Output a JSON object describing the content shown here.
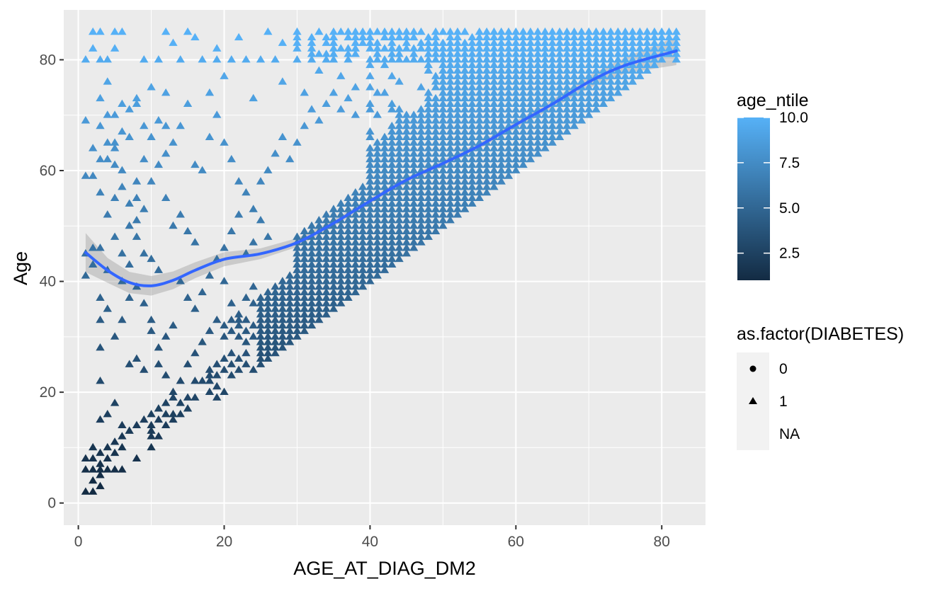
{
  "chart_data": {
    "type": "scatter",
    "title": "",
    "xlabel": "AGE_AT_DIAG_DM2",
    "ylabel": "Age",
    "xlim": [
      -2,
      86
    ],
    "ylim": [
      -4,
      89
    ],
    "x_ticks": [
      0,
      20,
      40,
      60,
      80
    ],
    "x_tick_labels": [
      "0",
      "20",
      "40",
      "60",
      "80"
    ],
    "y_ticks": [
      0,
      20,
      40,
      60,
      80
    ],
    "y_tick_labels": [
      "0",
      "20",
      "40",
      "60",
      "80"
    ],
    "grid": true,
    "background": "#EBEBEB",
    "marker": "triangle",
    "color_scale": {
      "title": "age_ntile",
      "low_color": "#132B43",
      "high_color": "#56B1F7",
      "min": 1,
      "max": 10,
      "ticks": [
        2.5,
        5.0,
        7.5,
        10.0
      ],
      "tick_labels": [
        "2.5",
        "5.0",
        "7.5",
        "10.0"
      ]
    },
    "shape_legend": {
      "title": "as.factor(DIABETES)",
      "entries": [
        {
          "label": "0",
          "shape": "circle"
        },
        {
          "label": "1",
          "shape": "triangle"
        },
        {
          "label": "NA",
          "shape": "none"
        }
      ]
    },
    "smooth": {
      "color": "#3366FF",
      "band_color": "#999999",
      "x": [
        1,
        4,
        7,
        10,
        13,
        16,
        20,
        25,
        30,
        35,
        40,
        45,
        50,
        55,
        60,
        65,
        70,
        75,
        82
      ],
      "y": [
        45.2,
        42,
        39.8,
        39.2,
        40.2,
        42,
        44,
        45,
        47,
        50.5,
        54.5,
        58.3,
        61.3,
        64.5,
        68.3,
        72,
        76,
        79,
        81.6
      ],
      "se": [
        2.2,
        1.4,
        1.2,
        1.1,
        1.0,
        0.9,
        0.8,
        0.6,
        0.5,
        0.4,
        0.35,
        0.35,
        0.35,
        0.35,
        0.4,
        0.5,
        0.7,
        0.9,
        1.6
      ]
    },
    "points": {
      "x_range": [
        1,
        82
      ],
      "y_range": [
        2,
        85
      ],
      "relation": "Age >= AGE_AT_DIAG_DM2; dense band between y = x and y = x + 25; sparse scatter above; cluster near y = 80-85",
      "scattered_points": [
        [
          1,
          59
        ],
        [
          2,
          59
        ],
        [
          1,
          69
        ],
        [
          1,
          41
        ],
        [
          2,
          43
        ],
        [
          1,
          45
        ],
        [
          2,
          46
        ],
        [
          3,
          46
        ],
        [
          3,
          33
        ],
        [
          3,
          22
        ],
        [
          2,
          10
        ],
        [
          1,
          8
        ],
        [
          2,
          8
        ],
        [
          1,
          2
        ],
        [
          2,
          2
        ],
        [
          3,
          6
        ],
        [
          4,
          6
        ],
        [
          5,
          6
        ],
        [
          4,
          8
        ],
        [
          6,
          6
        ],
        [
          3,
          15
        ],
        [
          4,
          16
        ],
        [
          5,
          18
        ],
        [
          6,
          14
        ],
        [
          3,
          37
        ],
        [
          4,
          35
        ],
        [
          3,
          62
        ],
        [
          4,
          62
        ],
        [
          5,
          64
        ],
        [
          4,
          70
        ],
        [
          6,
          72
        ],
        [
          5,
          65
        ],
        [
          7,
          66
        ],
        [
          6,
          60
        ],
        [
          8,
          58
        ],
        [
          8,
          55
        ],
        [
          9,
          53
        ],
        [
          7,
          50
        ],
        [
          8,
          48
        ],
        [
          9,
          45
        ],
        [
          10,
          44
        ],
        [
          11,
          42
        ],
        [
          7,
          25
        ],
        [
          8,
          26
        ],
        [
          9,
          24
        ],
        [
          9,
          15
        ],
        [
          10,
          13
        ],
        [
          11,
          12
        ],
        [
          12,
          14
        ],
        [
          13,
          16
        ],
        [
          14,
          18
        ],
        [
          15,
          17
        ],
        [
          16,
          19
        ],
        [
          17,
          22
        ],
        [
          18,
          23
        ],
        [
          19,
          25
        ],
        [
          12,
          30
        ],
        [
          13,
          32
        ],
        [
          12,
          55
        ],
        [
          13,
          50
        ],
        [
          14,
          52
        ],
        [
          15,
          49
        ],
        [
          16,
          47
        ],
        [
          12,
          68
        ],
        [
          13,
          65
        ],
        [
          14,
          68
        ],
        [
          15,
          72
        ],
        [
          16,
          61
        ],
        [
          17,
          60
        ],
        [
          18,
          66
        ],
        [
          19,
          70
        ],
        [
          20,
          65
        ],
        [
          21,
          62
        ],
        [
          22,
          58
        ],
        [
          23,
          56
        ],
        [
          24,
          53
        ],
        [
          25,
          51
        ],
        [
          26,
          48
        ],
        [
          20,
          40
        ],
        [
          21,
          36
        ],
        [
          22,
          33
        ],
        [
          23,
          37
        ],
        [
          24,
          39
        ],
        [
          25,
          34
        ],
        [
          26,
          37
        ],
        [
          27,
          35
        ],
        [
          12,
          85
        ],
        [
          15,
          85
        ],
        [
          3,
          80
        ],
        [
          4,
          80
        ],
        [
          5,
          82
        ],
        [
          6,
          85
        ],
        [
          9,
          80
        ],
        [
          11,
          80
        ],
        [
          14,
          80
        ],
        [
          17,
          80
        ],
        [
          19,
          80
        ],
        [
          21,
          80
        ],
        [
          23,
          80
        ],
        [
          25,
          80
        ],
        [
          27,
          80
        ],
        [
          30,
          80
        ],
        [
          30,
          85
        ],
        [
          1,
          80
        ],
        [
          2,
          82
        ],
        [
          8,
          72
        ],
        [
          10,
          75
        ],
        [
          12,
          74
        ],
        [
          18,
          74
        ],
        [
          20,
          77
        ],
        [
          24,
          73
        ],
        [
          28,
          76
        ],
        [
          31,
          74
        ],
        [
          33,
          78
        ],
        [
          35,
          82
        ],
        [
          37,
          80
        ],
        [
          39,
          85
        ],
        [
          42,
          80
        ],
        [
          44,
          84
        ],
        [
          46,
          80
        ],
        [
          48,
          82
        ],
        [
          50,
          85
        ],
        [
          52,
          80
        ],
        [
          55,
          85
        ],
        [
          58,
          82
        ],
        [
          60,
          85
        ],
        [
          2,
          85
        ],
        [
          3,
          85
        ],
        [
          5,
          85
        ],
        [
          6,
          85
        ],
        [
          13,
          83
        ],
        [
          16,
          84
        ],
        [
          19,
          82
        ],
        [
          22,
          84
        ],
        [
          26,
          85
        ],
        [
          28,
          83
        ],
        [
          32,
          84
        ],
        [
          34,
          80
        ],
        [
          36,
          77
        ],
        [
          38,
          75
        ],
        [
          3,
          28
        ],
        [
          5,
          30
        ],
        [
          6,
          33
        ],
        [
          4,
          42
        ],
        [
          6,
          40
        ],
        [
          7,
          37
        ],
        [
          8,
          39
        ],
        [
          9,
          36
        ],
        [
          10,
          33
        ],
        [
          10,
          31
        ],
        [
          11,
          28
        ],
        [
          11,
          25
        ],
        [
          12,
          23
        ],
        [
          13,
          20
        ],
        [
          14,
          22
        ],
        [
          15,
          25
        ],
        [
          16,
          27
        ],
        [
          17,
          29
        ],
        [
          18,
          31
        ],
        [
          19,
          33
        ],
        [
          10,
          58
        ],
        [
          11,
          61
        ],
        [
          12,
          63
        ],
        [
          9,
          62
        ],
        [
          10,
          66
        ],
        [
          11,
          69
        ],
        [
          7,
          71
        ],
        [
          8,
          73
        ],
        [
          9,
          68
        ],
        [
          3,
          68
        ],
        [
          4,
          65
        ],
        [
          5,
          61
        ],
        [
          6,
          57
        ],
        [
          7,
          54
        ],
        [
          8,
          51
        ],
        [
          5,
          48
        ],
        [
          6,
          45
        ],
        [
          7,
          43
        ],
        [
          4,
          52
        ],
        [
          5,
          55
        ],
        [
          3,
          56
        ],
        [
          2,
          64
        ],
        [
          3,
          73
        ],
        [
          4,
          76
        ],
        [
          5,
          70
        ],
        [
          6,
          67
        ],
        [
          14,
          40
        ],
        [
          15,
          37
        ],
        [
          16,
          35
        ],
        [
          17,
          38
        ],
        [
          18,
          41
        ],
        [
          19,
          44
        ],
        [
          20,
          46
        ],
        [
          21,
          49
        ],
        [
          22,
          52
        ],
        [
          23,
          45
        ],
        [
          24,
          47
        ],
        [
          25,
          58
        ],
        [
          26,
          60
        ],
        [
          27,
          63
        ],
        [
          28,
          66
        ],
        [
          29,
          62
        ],
        [
          30,
          65
        ],
        [
          31,
          68
        ],
        [
          32,
          71
        ],
        [
          33,
          69
        ],
        [
          34,
          72
        ],
        [
          35,
          74
        ],
        [
          36,
          71
        ],
        [
          37,
          73
        ],
        [
          38,
          70
        ]
      ]
    }
  }
}
